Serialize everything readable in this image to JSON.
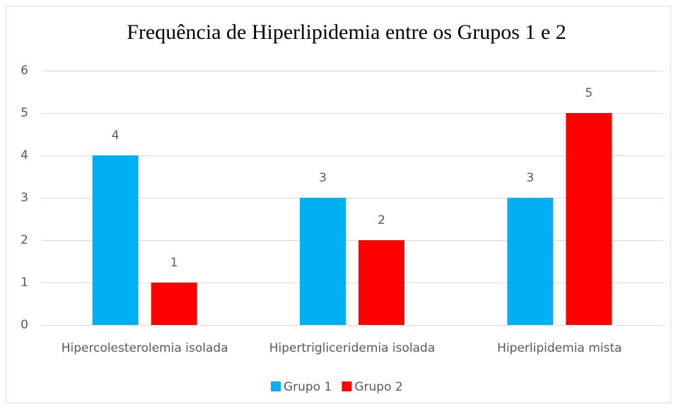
{
  "chart_data": {
    "type": "bar",
    "title": "Frequência de Hiperlipidemia entre os Grupos 1 e 2",
    "categories": [
      "Hipercolesterolemia isolada",
      "Hipertrigliceridemia isolada",
      "Hiperlipidemia mista"
    ],
    "series": [
      {
        "name": "Grupo 1",
        "color": "#00b0f0",
        "values": [
          4,
          3,
          3
        ]
      },
      {
        "name": "Grupo 2",
        "color": "#ff0000",
        "values": [
          1,
          2,
          5
        ]
      }
    ],
    "ylim": [
      0,
      6
    ],
    "yticks": [
      0,
      1,
      2,
      3,
      4,
      5,
      6
    ],
    "grid": true,
    "legend": "bottom",
    "data_labels": true
  }
}
